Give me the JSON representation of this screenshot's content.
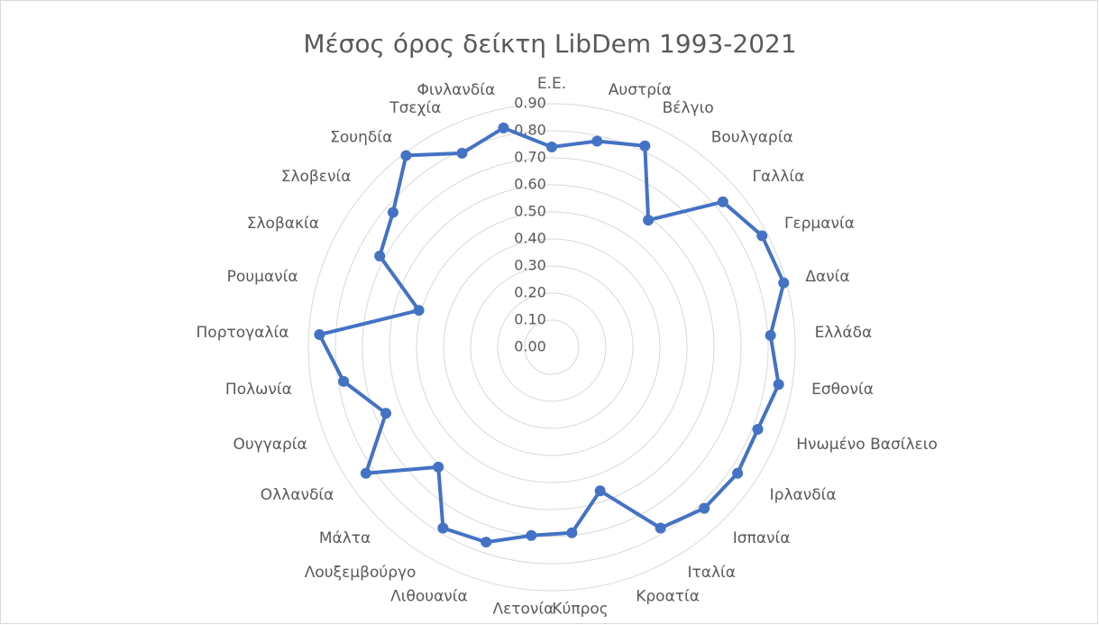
{
  "chart_data": {
    "type": "radar",
    "title": "Μέσος όρος δείκτη LibDem 1993-2021",
    "categories": [
      "Ε.Ε.",
      "Αυστρία",
      "Βέλγιο",
      "Βουλγαρία",
      "Γαλλία",
      "Γερμανία",
      "Δανία",
      "Ελλάδα",
      "Εσθονία",
      "Ηνωμένο Βασίλειο",
      "Ιρλανδία",
      "Ισπανία",
      "Ιταλία",
      "Κροατία",
      "Κύπρος",
      "Λετονία",
      "Λιθουανία",
      "Λουξεμβούργο",
      "Μάλτα",
      "Ολλανδία",
      "Ουγγαρία",
      "Πολωνία",
      "Πορτογαλία",
      "Ρουμανία",
      "Σλοβακία",
      "Σλοβενία",
      "Σουηδία",
      "Τσεχία",
      "Φινλανδία"
    ],
    "values": [
      0.74,
      0.78,
      0.82,
      0.59,
      0.83,
      0.88,
      0.89,
      0.81,
      0.85,
      0.82,
      0.83,
      0.82,
      0.78,
      0.56,
      0.69,
      0.7,
      0.76,
      0.78,
      0.61,
      0.83,
      0.66,
      0.78,
      0.86,
      0.51,
      0.72,
      0.77,
      0.89,
      0.79,
      0.83
    ],
    "color": "#4472c4",
    "ylim": [
      0,
      0.9
    ],
    "yticks": [
      {
        "value": 0,
        "label": "0.00"
      },
      {
        "value": 0.1,
        "label": "0.10"
      },
      {
        "value": 0.2,
        "label": "0.20"
      },
      {
        "value": 0.3,
        "label": "0.30"
      },
      {
        "value": 0.4,
        "label": "0.40"
      },
      {
        "value": 0.5,
        "label": "0.50"
      },
      {
        "value": 0.6,
        "label": "0.60"
      },
      {
        "value": 0.7,
        "label": "0.70"
      },
      {
        "value": 0.8,
        "label": "0.80"
      },
      {
        "value": 0.9,
        "label": "0.90"
      }
    ],
    "grid": true
  }
}
